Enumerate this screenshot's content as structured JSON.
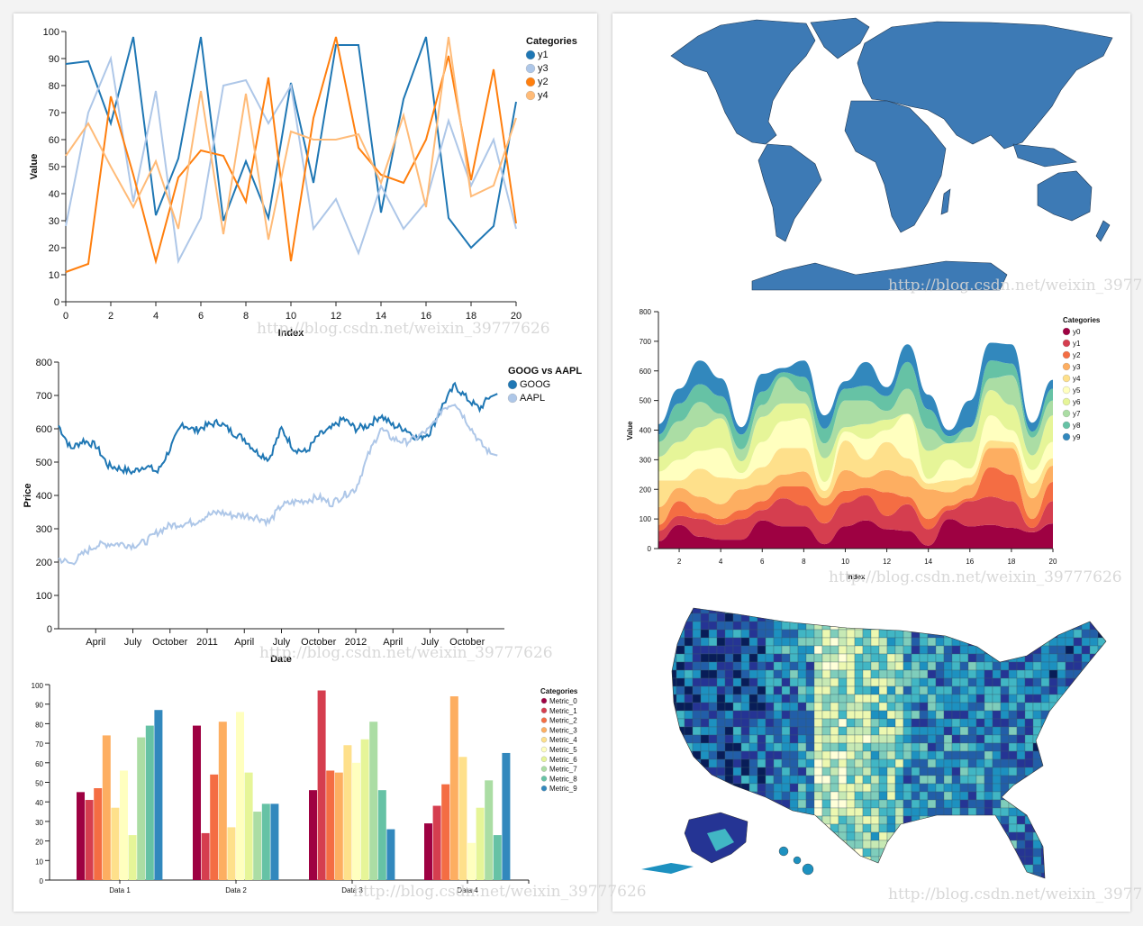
{
  "watermark": "http://blog.csdn.net/weixin_39777626",
  "chart_data": [
    {
      "type": "line",
      "title": "",
      "xlabel": "Index",
      "ylabel": "Value",
      "xlim": [
        0,
        20
      ],
      "ylim": [
        0,
        100
      ],
      "xticks": [
        "0",
        "2",
        "4",
        "6",
        "8",
        "10",
        "12",
        "14",
        "16",
        "18",
        "20"
      ],
      "yticks": [
        "0",
        "10",
        "20",
        "30",
        "40",
        "50",
        "60",
        "70",
        "80",
        "90",
        "100"
      ],
      "legend_title": "Categories",
      "legend_position": "top-right",
      "x": [
        0,
        1,
        2,
        3,
        4,
        5,
        6,
        7,
        8,
        9,
        10,
        11,
        12,
        13,
        14,
        15,
        16,
        17,
        18,
        19,
        20
      ],
      "series": [
        {
          "name": "y1",
          "color": "#1f77b4",
          "values": [
            88,
            89,
            66,
            98,
            32,
            53,
            98,
            30,
            52,
            31,
            81,
            44,
            95,
            95,
            33,
            75,
            98,
            31,
            20,
            28,
            74
          ]
        },
        {
          "name": "y3",
          "color": "#aec7e8",
          "values": [
            28,
            70,
            90,
            37,
            78,
            15,
            31,
            80,
            82,
            66,
            80,
            27,
            38,
            18,
            43,
            27,
            37,
            67,
            43,
            60,
            27
          ]
        },
        {
          "name": "y2",
          "color": "#ff7f0e",
          "values": [
            11,
            14,
            76,
            47,
            15,
            46,
            56,
            54,
            37,
            83,
            15,
            68,
            98,
            57,
            47,
            44,
            60,
            91,
            45,
            86,
            29
          ]
        },
        {
          "name": "y4",
          "color": "#ffbb78",
          "values": [
            54,
            66,
            50,
            35,
            52,
            27,
            78,
            25,
            77,
            23,
            63,
            60,
            60,
            62,
            44,
            69,
            35,
            98,
            39,
            43,
            68
          ]
        }
      ]
    },
    {
      "type": "line",
      "title": "GOOG vs AAPL",
      "xlabel": "Date",
      "ylabel": "Price",
      "ylim": [
        0,
        800
      ],
      "yticks": [
        "0",
        "100",
        "200",
        "300",
        "400",
        "500",
        "600",
        "700",
        "800"
      ],
      "xticks": [
        {
          "label": "April",
          "month": 3
        },
        {
          "label": "July",
          "month": 6
        },
        {
          "label": "October",
          "month": 9
        },
        {
          "label": "2011",
          "month": 12
        },
        {
          "label": "April",
          "month": 15
        },
        {
          "label": "July",
          "month": 18
        },
        {
          "label": "October",
          "month": 21
        },
        {
          "label": "2012",
          "month": 24
        },
        {
          "label": "April",
          "month": 27
        },
        {
          "label": "July",
          "month": 30
        },
        {
          "label": "October",
          "month": 33
        }
      ],
      "x_months_since_jan_2010": [
        0,
        1,
        2,
        3,
        4,
        5,
        6,
        7,
        8,
        9,
        10,
        11,
        12,
        13,
        14,
        15,
        16,
        17,
        18,
        19,
        20,
        21,
        22,
        23,
        24,
        25,
        26,
        27,
        28,
        29,
        30,
        31,
        32,
        33,
        34,
        35
      ],
      "legend_position": "top-right",
      "series": [
        {
          "name": "GOOG",
          "color": "#1f77b4",
          "values": [
            610,
            540,
            565,
            550,
            490,
            480,
            470,
            490,
            470,
            540,
            615,
            595,
            610,
            620,
            590,
            570,
            530,
            510,
            600,
            540,
            530,
            580,
            600,
            630,
            600,
            610,
            640,
            610,
            600,
            570,
            590,
            670,
            730,
            690,
            660,
            705
          ]
        },
        {
          "name": "AAPL",
          "color": "#aec7e8",
          "values": [
            210,
            195,
            225,
            250,
            255,
            255,
            250,
            260,
            290,
            310,
            315,
            320,
            340,
            350,
            340,
            340,
            335,
            320,
            370,
            380,
            385,
            395,
            375,
            400,
            420,
            520,
            600,
            570,
            560,
            575,
            600,
            660,
            680,
            620,
            560,
            520
          ]
        }
      ]
    },
    {
      "type": "bar",
      "title": "",
      "categories": [
        "Data 1",
        "Data 2",
        "Data 3",
        "Data 4"
      ],
      "ylim": [
        0,
        100
      ],
      "yticks": [
        "0",
        "10",
        "20",
        "30",
        "40",
        "50",
        "60",
        "70",
        "80",
        "90",
        "100"
      ],
      "legend_title": "Categories",
      "legend_position": "top-right",
      "series": [
        {
          "name": "Metric_0",
          "color": "#9e0142",
          "values": [
            45,
            79,
            46,
            29
          ]
        },
        {
          "name": "Metric_1",
          "color": "#d53e4f",
          "values": [
            41,
            24,
            97,
            38
          ]
        },
        {
          "name": "Metric_2",
          "color": "#f46d43",
          "values": [
            47,
            54,
            56,
            49
          ]
        },
        {
          "name": "Metric_3",
          "color": "#fdae61",
          "values": [
            74,
            81,
            55,
            94
          ]
        },
        {
          "name": "Metric_4",
          "color": "#fee08b",
          "values": [
            37,
            27,
            69,
            63
          ]
        },
        {
          "name": "Metric_5",
          "color": "#ffffbf",
          "values": [
            56,
            86,
            60,
            19
          ]
        },
        {
          "name": "Metric_6",
          "color": "#e6f598",
          "values": [
            23,
            55,
            72,
            37
          ]
        },
        {
          "name": "Metric_7",
          "color": "#abdda4",
          "values": [
            73,
            35,
            81,
            51
          ]
        },
        {
          "name": "Metric_8",
          "color": "#66c2a5",
          "values": [
            79,
            39,
            46,
            23
          ]
        },
        {
          "name": "Metric_9",
          "color": "#3288bd",
          "values": [
            87,
            39,
            26,
            65
          ]
        }
      ]
    },
    {
      "type": "area",
      "title": "",
      "xlabel": "Index",
      "ylabel": "Value",
      "xlim": [
        1,
        20
      ],
      "ylim": [
        0,
        800
      ],
      "xticks": [
        "2",
        "4",
        "6",
        "8",
        "10",
        "12",
        "14",
        "16",
        "18",
        "20"
      ],
      "yticks": [
        "0",
        "100",
        "200",
        "300",
        "400",
        "500",
        "600",
        "700",
        "800"
      ],
      "legend_title": "Categories",
      "legend_position": "top-right",
      "stacked": true,
      "x": [
        1,
        2,
        3,
        4,
        5,
        6,
        7,
        8,
        9,
        10,
        11,
        12,
        13,
        14,
        15,
        16,
        17,
        18,
        19,
        20
      ],
      "series": [
        {
          "name": "y0",
          "color": "#9e0142",
          "values": [
            25,
            80,
            40,
            30,
            30,
            95,
            75,
            75,
            15,
            75,
            95,
            65,
            60,
            10,
            100,
            75,
            80,
            70,
            55,
            85
          ]
        },
        {
          "name": "y1",
          "color": "#d53e4f",
          "values": [
            35,
            30,
            60,
            50,
            70,
            35,
            95,
            70,
            70,
            80,
            85,
            45,
            90,
            55,
            30,
            85,
            95,
            90,
            15,
            75
          ]
        },
        {
          "name": "y2",
          "color": "#f46d43",
          "values": [
            20,
            50,
            20,
            20,
            30,
            30,
            40,
            65,
            60,
            40,
            25,
            80,
            25,
            35,
            15,
            10,
            100,
            90,
            30,
            65
          ]
        },
        {
          "name": "y3",
          "color": "#fdae61",
          "values": [
            60,
            45,
            55,
            50,
            70,
            55,
            40,
            50,
            25,
            70,
            35,
            75,
            70,
            100,
            45,
            45,
            65,
            90,
            70,
            55
          ]
        },
        {
          "name": "y4",
          "color": "#fee08b",
          "values": [
            90,
            25,
            95,
            90,
            35,
            60,
            90,
            80,
            25,
            100,
            60,
            95,
            60,
            20,
            40,
            25,
            25,
            20,
            50,
            25
          ]
        },
        {
          "name": "y5",
          "color": "#ffffbf",
          "values": [
            30,
            70,
            60,
            100,
            20,
            85,
            90,
            100,
            30,
            30,
            70,
            40,
            150,
            15,
            70,
            30,
            85,
            40,
            45,
            55
          ]
        },
        {
          "name": "y6",
          "color": "#e6f598",
          "values": [
            50,
            60,
            80,
            100,
            40,
            85,
            60,
            50,
            80,
            15,
            50,
            35,
            0,
            95,
            55,
            90,
            85,
            85,
            50,
            90
          ]
        },
        {
          "name": "y7",
          "color": "#abdda4",
          "values": [
            50,
            70,
            85,
            15,
            40,
            40,
            90,
            40,
            50,
            90,
            80,
            30,
            85,
            75,
            0,
            50,
            40,
            100,
            60,
            50
          ]
        },
        {
          "name": "y8",
          "color": "#66c2a5",
          "values": [
            25,
            60,
            60,
            60,
            50,
            45,
            15,
            50,
            50,
            40,
            50,
            50,
            90,
            65,
            25,
            0,
            60,
            40,
            20,
            40
          ]
        },
        {
          "name": "y9",
          "color": "#3288bd",
          "values": [
            35,
            50,
            80,
            60,
            25,
            60,
            15,
            55,
            45,
            25,
            80,
            30,
            60,
            50,
            20,
            90,
            60,
            65,
            30,
            30
          ]
        }
      ]
    }
  ],
  "maps": {
    "world": {
      "fill": "#3d7ab5",
      "stroke": "#1c3550"
    },
    "us_counties": {
      "palette": [
        "#ffffd9",
        "#edf8b1",
        "#c7e9b4",
        "#7fcdbb",
        "#41b6c4",
        "#1d91c0",
        "#225ea8",
        "#253494",
        "#081d58"
      ]
    }
  }
}
